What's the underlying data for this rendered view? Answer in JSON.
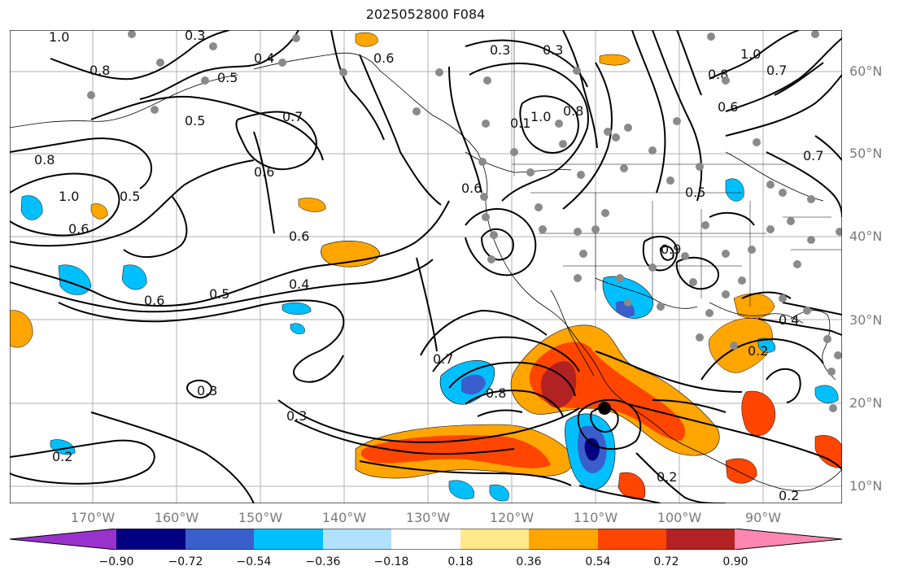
{
  "title": "2025052800 F084",
  "latitude_labels": [
    "60°N",
    "50°N",
    "40°N",
    "30°N",
    "20°N",
    "10°N"
  ],
  "longitude_labels": [
    "170°W",
    "160°W",
    "150°W",
    "140°W",
    "130°W",
    "120°W",
    "110°W",
    "100°W",
    "90°W"
  ],
  "contour_labels": [
    "1.0",
    "0.8",
    "0.3",
    "0.5",
    "0.4",
    "0.5",
    "0.7",
    "0.6",
    "0.8",
    "1.0",
    "0.6",
    "0.5",
    "0.6",
    "0.5",
    "0.6",
    "0.4",
    "0.6",
    "0.7",
    "0.8",
    "0.3",
    "0.3",
    "0.2",
    "0.3",
    "0.3",
    "0.6",
    "1.0",
    "0.8",
    "0.1",
    "0.8",
    "0.6",
    "1.0",
    "0.7",
    "0.7",
    "0.5",
    "0.9",
    "0.4",
    "0.2",
    "0.2",
    "0.2"
  ],
  "colorbar": {
    "tick_labels": [
      "−0.90",
      "−0.72",
      "−0.54",
      "−0.36",
      "−0.18",
      "0.18",
      "0.36",
      "0.54",
      "0.72",
      "0.90"
    ],
    "colors": [
      "#9932cc",
      "#000080",
      "#3a5fcd",
      "#00bfff",
      "#b0e2ff",
      "#ffffff",
      "#ffe88a",
      "#ffa500",
      "#ff4500",
      "#b22222",
      "#ff86b0"
    ]
  },
  "fill_colors": {
    "neg_weak": "#00bfff",
    "neg_mid": "#3a5fcd",
    "neg_strong": "#000080",
    "pos_weak": "#ffa500",
    "pos_mid": "#ff4500",
    "pos_strong": "#b22222"
  }
}
